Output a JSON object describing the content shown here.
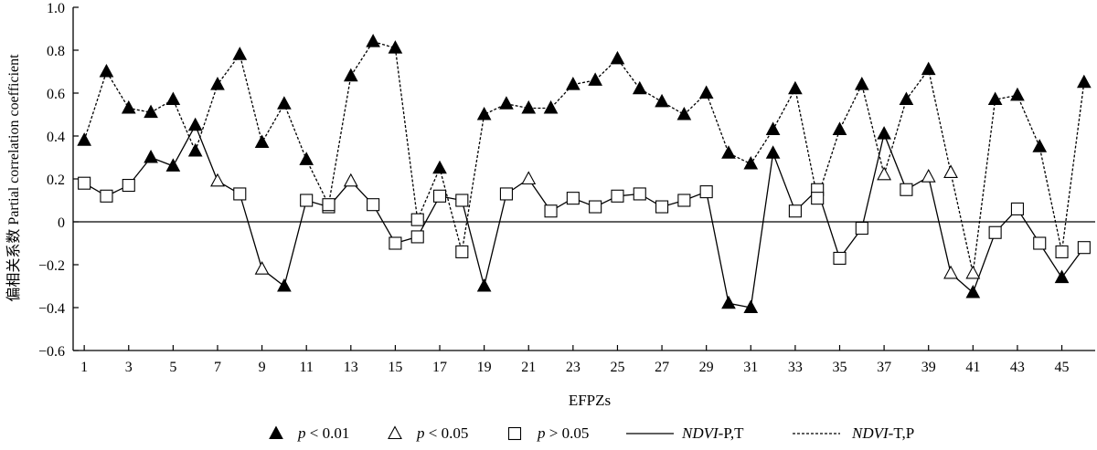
{
  "chart_data": {
    "type": "line",
    "xlabel": "EFPZs",
    "ylabel": "偏相关系数 Partial correlation coefficient",
    "ylim": [
      -0.6,
      1.0
    ],
    "yticks": [
      "−0.6",
      "−0.4",
      "−0.2",
      "0",
      "0.2",
      "0.4",
      "0.6",
      "0.8",
      "1.0"
    ],
    "ytick_values": [
      -0.6,
      -0.4,
      -0.2,
      0,
      0.2,
      0.4,
      0.6,
      0.8,
      1.0
    ],
    "xticks": [
      "1",
      "3",
      "5",
      "7",
      "9",
      "11",
      "13",
      "15",
      "17",
      "19",
      "21",
      "23",
      "25",
      "27",
      "29",
      "31",
      "33",
      "35",
      "37",
      "39",
      "41",
      "43",
      "45"
    ],
    "xtick_values": [
      1,
      3,
      5,
      7,
      9,
      11,
      13,
      15,
      17,
      19,
      21,
      23,
      25,
      27,
      29,
      31,
      33,
      35,
      37,
      39,
      41,
      43,
      45
    ],
    "xlim": [
      0.5,
      46.5
    ],
    "x": [
      1,
      2,
      3,
      4,
      5,
      6,
      7,
      8,
      9,
      10,
      11,
      12,
      13,
      14,
      15,
      16,
      17,
      18,
      19,
      20,
      21,
      22,
      23,
      24,
      25,
      26,
      27,
      28,
      29,
      30,
      31,
      32,
      33,
      34,
      35,
      36,
      37,
      38,
      39,
      40,
      41,
      42,
      43,
      44,
      45,
      46
    ],
    "series": [
      {
        "name": "NDVI-P,T",
        "style": "solid",
        "values": [
          0.18,
          0.12,
          0.17,
          0.3,
          0.26,
          0.45,
          0.19,
          0.13,
          -0.22,
          -0.3,
          0.1,
          0.07,
          0.19,
          0.08,
          -0.1,
          -0.07,
          0.12,
          0.1,
          -0.3,
          0.13,
          0.2,
          0.05,
          0.11,
          0.07,
          0.12,
          0.13,
          0.07,
          0.1,
          0.14,
          -0.38,
          -0.4,
          0.32,
          0.05,
          0.15,
          -0.17,
          -0.03,
          0.41,
          0.15,
          0.21,
          -0.24,
          -0.33,
          -0.05,
          0.06,
          -0.1,
          -0.26,
          -0.12
        ],
        "significance": [
          "gt005",
          "gt005",
          "gt005",
          "lt001",
          "lt001",
          "lt001",
          "lt005",
          "gt005",
          "lt005",
          "lt001",
          "gt005",
          "gt005",
          "lt005",
          "gt005",
          "gt005",
          "gt005",
          "gt005",
          "gt005",
          "lt001",
          "gt005",
          "lt005",
          "gt005",
          "gt005",
          "gt005",
          "gt005",
          "gt005",
          "gt005",
          "gt005",
          "gt005",
          "lt001",
          "lt001",
          "lt001",
          "gt005",
          "gt005",
          "gt005",
          "gt005",
          "lt001",
          "gt005",
          "lt005",
          "lt005",
          "lt001",
          "gt005",
          "gt005",
          "gt005",
          "lt001",
          "gt005"
        ]
      },
      {
        "name": "NDVI-T,P",
        "style": "dashed",
        "values": [
          0.38,
          0.7,
          0.53,
          0.51,
          0.57,
          0.33,
          0.64,
          0.78,
          0.37,
          0.55,
          0.29,
          0.08,
          0.68,
          0.84,
          0.81,
          0.01,
          0.25,
          -0.14,
          0.5,
          0.55,
          0.53,
          0.53,
          0.64,
          0.66,
          0.76,
          0.62,
          0.56,
          0.5,
          0.6,
          0.32,
          0.27,
          0.43,
          0.62,
          0.11,
          0.43,
          0.64,
          0.22,
          0.57,
          0.71,
          0.23,
          -0.24,
          0.57,
          0.59,
          0.35,
          -0.14,
          0.65
        ],
        "significance": [
          "lt001",
          "lt001",
          "lt001",
          "lt001",
          "lt001",
          "lt001",
          "lt001",
          "lt001",
          "lt001",
          "lt001",
          "lt001",
          "gt005",
          "lt001",
          "lt001",
          "lt001",
          "gt005",
          "lt001",
          "gt005",
          "lt001",
          "lt001",
          "lt001",
          "lt001",
          "lt001",
          "lt001",
          "lt001",
          "lt001",
          "lt001",
          "lt001",
          "lt001",
          "lt001",
          "lt001",
          "lt001",
          "lt001",
          "gt005",
          "lt001",
          "lt001",
          "lt005",
          "lt001",
          "lt001",
          "lt005",
          "lt005",
          "lt001",
          "lt001",
          "lt001",
          "gt005",
          "lt001"
        ]
      }
    ],
    "legend": {
      "position": "bottom",
      "items": [
        {
          "marker": "filled-triangle",
          "p": "p",
          "rest": " < 0.01"
        },
        {
          "marker": "open-triangle",
          "p": "p",
          "rest": " < 0.05"
        },
        {
          "marker": "open-square",
          "p": "p",
          "rest": " > 0.05"
        },
        {
          "line": "solid",
          "italic": "NDVI",
          "rest": "-P,T"
        },
        {
          "line": "dashed",
          "italic": "NDVI",
          "rest": "-T,P"
        }
      ]
    }
  }
}
